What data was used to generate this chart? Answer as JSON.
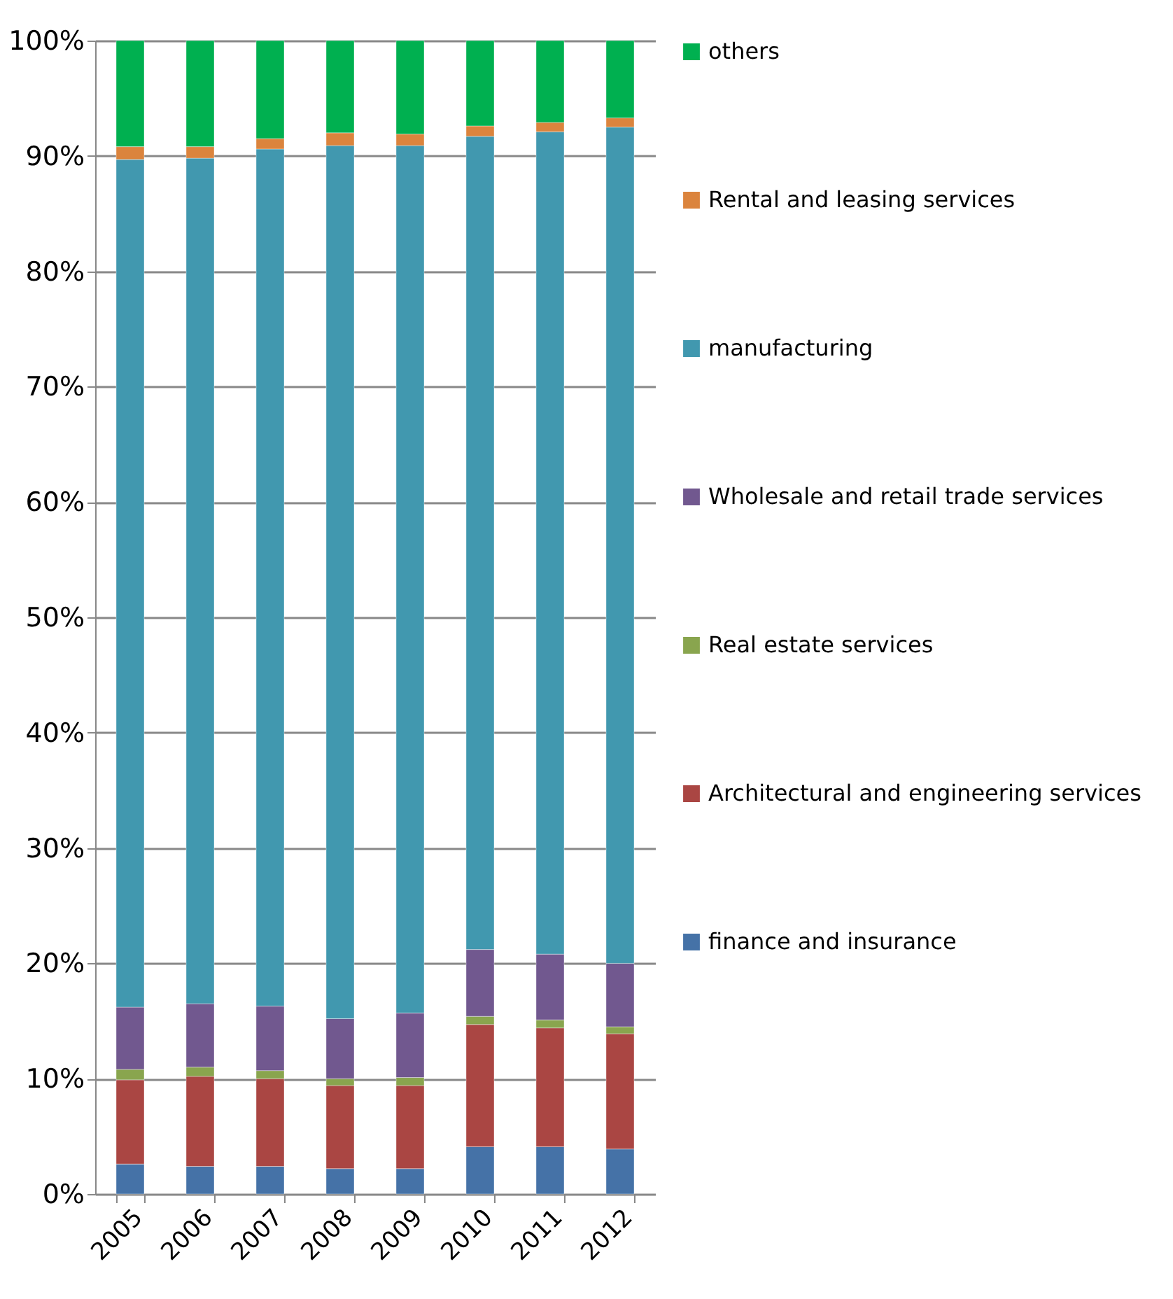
{
  "chart_data": {
    "type": "bar",
    "stacked": true,
    "categories": [
      "2005",
      "2006",
      "2007",
      "2008",
      "2009",
      "2010",
      "2011",
      "2012"
    ],
    "series": [
      {
        "name": "finance and insurance",
        "color": "#4572a7",
        "values": [
          2.6,
          2.4,
          2.4,
          2.2,
          2.2,
          4.1,
          4.1,
          3.9
        ]
      },
      {
        "name": "Architectural and engineering services",
        "color": "#aa4643",
        "values": [
          7.3,
          7.8,
          7.6,
          7.2,
          7.2,
          10.6,
          10.3,
          10.0
        ]
      },
      {
        "name": "Real estate services",
        "color": "#89a54e",
        "values": [
          0.9,
          0.8,
          0.7,
          0.6,
          0.7,
          0.7,
          0.7,
          0.6
        ]
      },
      {
        "name": "Wholesale and retail trade services",
        "color": "#71588f",
        "values": [
          5.4,
          5.5,
          5.6,
          5.2,
          5.6,
          5.8,
          5.7,
          5.5
        ]
      },
      {
        "name": "manufacturing",
        "color": "#4198af",
        "values": [
          73.5,
          73.3,
          74.3,
          75.7,
          75.2,
          70.5,
          71.3,
          72.5
        ]
      },
      {
        "name": "Rental and leasing services",
        "color": "#db843d",
        "values": [
          1.1,
          1.0,
          0.9,
          1.1,
          1.0,
          0.9,
          0.8,
          0.8
        ]
      },
      {
        "name": "others",
        "color": "#00b050",
        "values": [
          9.2,
          9.2,
          8.5,
          8.0,
          8.1,
          7.4,
          7.1,
          6.7
        ]
      }
    ],
    "ylim": [
      0,
      100
    ],
    "yticks": [
      {
        "value": 0,
        "label": "0%"
      },
      {
        "value": 10,
        "label": "10%"
      },
      {
        "value": 20,
        "label": "20%"
      },
      {
        "value": 30,
        "label": "30%"
      },
      {
        "value": 40,
        "label": "40%"
      },
      {
        "value": 50,
        "label": "50%"
      },
      {
        "value": 60,
        "label": "60%"
      },
      {
        "value": 70,
        "label": "70%"
      },
      {
        "value": 80,
        "label": "80%"
      },
      {
        "value": 90,
        "label": "90%"
      },
      {
        "value": 100,
        "label": "100%"
      }
    ],
    "grid": "y",
    "legend": "right"
  }
}
